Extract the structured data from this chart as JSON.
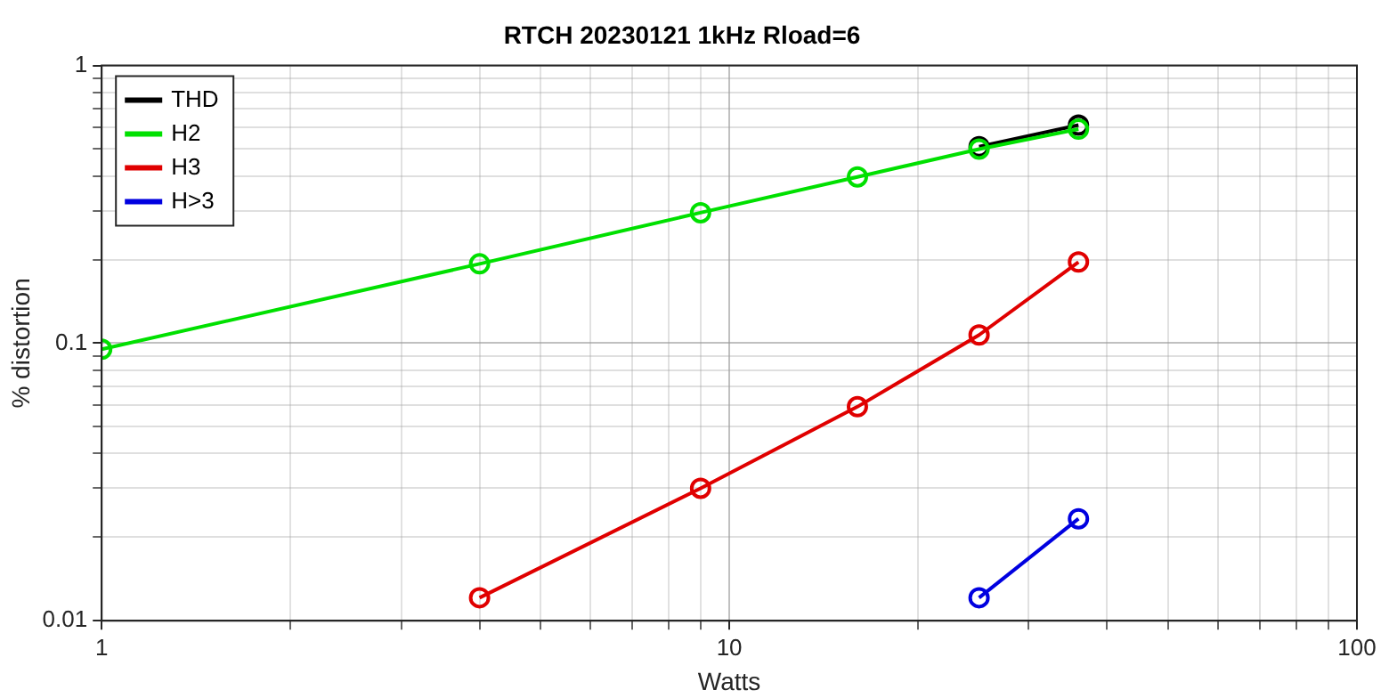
{
  "chart_data": {
    "type": "line",
    "title": "RTCH 20230121 1kHz Rload=6",
    "xlabel": "Watts",
    "ylabel": "% distortion",
    "x": [
      1,
      4,
      9,
      16,
      25,
      36
    ],
    "series": [
      {
        "name": "THD",
        "color": "#000000",
        "values": [
          null,
          null,
          null,
          null,
          0.51,
          0.61
        ]
      },
      {
        "name": "H2",
        "color": "#00e000",
        "values": [
          0.095,
          0.193,
          0.295,
          0.397,
          0.5,
          0.59
        ]
      },
      {
        "name": "H3",
        "color": "#e00000",
        "values": [
          null,
          0.0121,
          0.03,
          0.059,
          0.107,
          0.196
        ]
      },
      {
        "name": "H>3",
        "color": "#0000e0",
        "values": [
          null,
          null,
          null,
          null,
          0.0121,
          0.0233
        ]
      }
    ],
    "log": "xy",
    "xlim": [
      1,
      100
    ],
    "ylim": [
      0.01,
      1
    ],
    "xticks": [
      1,
      {
        "value": 2,
        "label": null
      },
      {
        "value": 3,
        "label": null
      },
      {
        "value": 4,
        "label": null
      },
      {
        "value": 5,
        "label": null
      },
      {
        "value": 6,
        "label": null
      },
      {
        "value": 7,
        "label": null
      },
      {
        "value": 8,
        "label": null
      },
      {
        "value": 9,
        "label": null
      },
      10,
      {
        "value": 20,
        "label": null
      },
      {
        "value": 30,
        "label": null
      },
      {
        "value": 40,
        "label": null
      },
      {
        "value": 50,
        "label": null
      },
      {
        "value": 60,
        "label": null
      },
      {
        "value": 70,
        "label": null
      },
      {
        "value": 80,
        "label": null
      },
      {
        "value": 90,
        "label": null
      },
      100
    ],
    "yticks": [
      0.01,
      {
        "value": 0.02,
        "label": null
      },
      {
        "value": 0.03,
        "label": null
      },
      {
        "value": 0.04,
        "label": null
      },
      {
        "value": 0.05,
        "label": null
      },
      {
        "value": 0.06,
        "label": null
      },
      {
        "value": 0.07,
        "label": null
      },
      {
        "value": 0.08,
        "label": null
      },
      {
        "value": 0.09,
        "label": null
      },
      0.1,
      {
        "value": 0.2,
        "label": null
      },
      {
        "value": 0.3,
        "label": null
      },
      {
        "value": 0.4,
        "label": null
      },
      {
        "value": 0.5,
        "label": null
      },
      {
        "value": 0.6,
        "label": null
      },
      {
        "value": 0.7,
        "label": null
      },
      {
        "value": 0.8,
        "label": null
      },
      {
        "value": 0.9,
        "label": null
      },
      1
    ],
    "grid": true,
    "legend": "top left",
    "marker": "circle",
    "line_style": "solid"
  }
}
